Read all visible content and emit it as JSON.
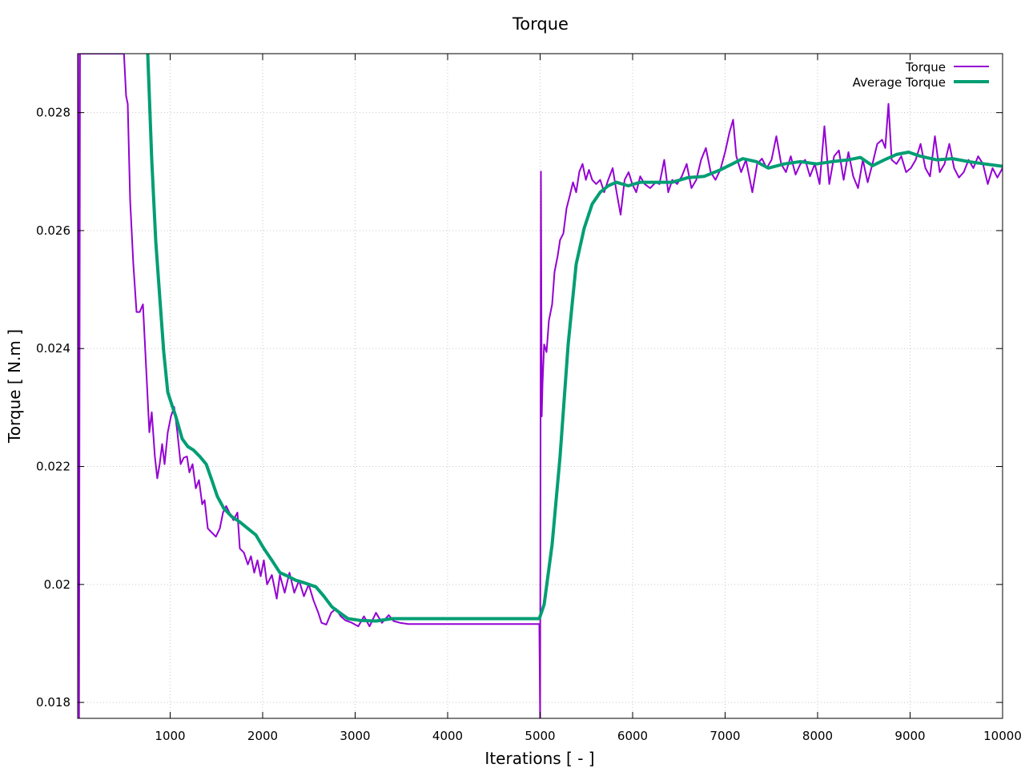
{
  "chart_data": {
    "type": "line",
    "title": "Torque",
    "xlabel": "Iterations [ - ]",
    "ylabel": "Torque [ N.m ]",
    "xlim": [
      0,
      10000
    ],
    "ylim": [
      0.01773,
      0.029
    ],
    "xticks": [
      1000,
      2000,
      3000,
      4000,
      5000,
      6000,
      7000,
      8000,
      9000,
      10000
    ],
    "xtick_labels": [
      "1000",
      "2000",
      "3000",
      "4000",
      "5000",
      "6000",
      "7000",
      "8000",
      "9000",
      "10000"
    ],
    "yticks": [
      0.018,
      0.02,
      0.022,
      0.024,
      0.026,
      0.028
    ],
    "ytick_labels": [
      "0.018",
      "0.02",
      "0.022",
      "0.024",
      "0.026",
      "0.028"
    ],
    "grid": true,
    "legend_position": "top-right",
    "series": [
      {
        "name": "Torque",
        "color": "#9400d3",
        "points": [
          [
            5,
            0.029
          ],
          [
            15,
            0.01773
          ],
          [
            25,
            0.029
          ],
          [
            500,
            0.029
          ],
          [
            524,
            0.02828
          ],
          [
            541,
            0.02815
          ],
          [
            567,
            0.02652
          ],
          [
            602,
            0.02543
          ],
          [
            636,
            0.02462
          ],
          [
            671,
            0.02462
          ],
          [
            706,
            0.02475
          ],
          [
            723,
            0.02421
          ],
          [
            749,
            0.0234
          ],
          [
            775,
            0.02258
          ],
          [
            801,
            0.02292
          ],
          [
            835,
            0.02217
          ],
          [
            861,
            0.0218
          ],
          [
            887,
            0.02204
          ],
          [
            913,
            0.02238
          ],
          [
            939,
            0.02204
          ],
          [
            974,
            0.02258
          ],
          [
            1009,
            0.02285
          ],
          [
            1043,
            0.02301
          ],
          [
            1078,
            0.02258
          ],
          [
            1113,
            0.02204
          ],
          [
            1147,
            0.02215
          ],
          [
            1182,
            0.02217
          ],
          [
            1208,
            0.0219
          ],
          [
            1242,
            0.02204
          ],
          [
            1277,
            0.02163
          ],
          [
            1312,
            0.02177
          ],
          [
            1346,
            0.02136
          ],
          [
            1372,
            0.02143
          ],
          [
            1407,
            0.02095
          ],
          [
            1450,
            0.02088
          ],
          [
            1494,
            0.02081
          ],
          [
            1537,
            0.02095
          ],
          [
            1571,
            0.02122
          ],
          [
            1606,
            0.02133
          ],
          [
            1640,
            0.02122
          ],
          [
            1684,
            0.02109
          ],
          [
            1727,
            0.02122
          ],
          [
            1753,
            0.02061
          ],
          [
            1797,
            0.02054
          ],
          [
            1840,
            0.02034
          ],
          [
            1874,
            0.02048
          ],
          [
            1909,
            0.0202
          ],
          [
            1944,
            0.02041
          ],
          [
            1978,
            0.02014
          ],
          [
            2013,
            0.02041
          ],
          [
            2048,
            0.02
          ],
          [
            2100,
            0.02016
          ],
          [
            2152,
            0.01976
          ],
          [
            2186,
            0.02016
          ],
          [
            2238,
            0.01986
          ],
          [
            2290,
            0.0202
          ],
          [
            2342,
            0.01986
          ],
          [
            2394,
            0.02007
          ],
          [
            2446,
            0.0198
          ],
          [
            2498,
            0.02
          ],
          [
            2550,
            0.01973
          ],
          [
            2602,
            0.01952
          ],
          [
            2636,
            0.01935
          ],
          [
            2688,
            0.01932
          ],
          [
            2740,
            0.01952
          ],
          [
            2792,
            0.01959
          ],
          [
            2844,
            0.01946
          ],
          [
            2896,
            0.01939
          ],
          [
            2965,
            0.01935
          ],
          [
            3034,
            0.01929
          ],
          [
            3095,
            0.01946
          ],
          [
            3156,
            0.01929
          ],
          [
            3225,
            0.01952
          ],
          [
            3290,
            0.01935
          ],
          [
            3364,
            0.01948
          ],
          [
            3416,
            0.01938
          ],
          [
            3485,
            0.01935
          ],
          [
            3571,
            0.01933
          ],
          [
            4991,
            0.01933
          ],
          [
            5000,
            0.01773
          ],
          [
            5009,
            0.027
          ],
          [
            5017,
            0.02285
          ],
          [
            5026,
            0.0234
          ],
          [
            5043,
            0.02407
          ],
          [
            5069,
            0.02394
          ],
          [
            5095,
            0.02448
          ],
          [
            5130,
            0.02475
          ],
          [
            5156,
            0.0253
          ],
          [
            5190,
            0.02557
          ],
          [
            5216,
            0.02584
          ],
          [
            5251,
            0.02595
          ],
          [
            5286,
            0.02638
          ],
          [
            5320,
            0.02659
          ],
          [
            5355,
            0.02682
          ],
          [
            5390,
            0.02665
          ],
          [
            5424,
            0.027
          ],
          [
            5459,
            0.02713
          ],
          [
            5494,
            0.02686
          ],
          [
            5528,
            0.02703
          ],
          [
            5563,
            0.02686
          ],
          [
            5606,
            0.02679
          ],
          [
            5649,
            0.02686
          ],
          [
            5693,
            0.02665
          ],
          [
            5736,
            0.02686
          ],
          [
            5784,
            0.02706
          ],
          [
            5827,
            0.02665
          ],
          [
            5870,
            0.02627
          ],
          [
            5913,
            0.02686
          ],
          [
            5957,
            0.02699
          ],
          [
            5996,
            0.02679
          ],
          [
            6039,
            0.02665
          ],
          [
            6082,
            0.02692
          ],
          [
            6130,
            0.02679
          ],
          [
            6190,
            0.02672
          ],
          [
            6251,
            0.02682
          ],
          [
            6290,
            0.02679
          ],
          [
            6342,
            0.0272
          ],
          [
            6385,
            0.02665
          ],
          [
            6429,
            0.02686
          ],
          [
            6481,
            0.02679
          ],
          [
            6532,
            0.02692
          ],
          [
            6584,
            0.02713
          ],
          [
            6636,
            0.02672
          ],
          [
            6688,
            0.02686
          ],
          [
            6740,
            0.0272
          ],
          [
            6792,
            0.0274
          ],
          [
            6844,
            0.02699
          ],
          [
            6896,
            0.02686
          ],
          [
            6948,
            0.02703
          ],
          [
            7000,
            0.02733
          ],
          [
            7048,
            0.02767
          ],
          [
            7087,
            0.02788
          ],
          [
            7121,
            0.02726
          ],
          [
            7173,
            0.02699
          ],
          [
            7225,
            0.0272
          ],
          [
            7294,
            0.02665
          ],
          [
            7346,
            0.02713
          ],
          [
            7398,
            0.02722
          ],
          [
            7450,
            0.02706
          ],
          [
            7502,
            0.0272
          ],
          [
            7554,
            0.0276
          ],
          [
            7606,
            0.02713
          ],
          [
            7658,
            0.02699
          ],
          [
            7710,
            0.02726
          ],
          [
            7762,
            0.02695
          ],
          [
            7814,
            0.02713
          ],
          [
            7866,
            0.0272
          ],
          [
            7918,
            0.02692
          ],
          [
            7970,
            0.02713
          ],
          [
            8022,
            0.02679
          ],
          [
            8074,
            0.02777
          ],
          [
            8126,
            0.02679
          ],
          [
            8178,
            0.02726
          ],
          [
            8230,
            0.02736
          ],
          [
            8281,
            0.02686
          ],
          [
            8333,
            0.02733
          ],
          [
            8385,
            0.02692
          ],
          [
            8437,
            0.02672
          ],
          [
            8489,
            0.0272
          ],
          [
            8541,
            0.02682
          ],
          [
            8593,
            0.02713
          ],
          [
            8645,
            0.02747
          ],
          [
            8697,
            0.02754
          ],
          [
            8732,
            0.0274
          ],
          [
            8766,
            0.02815
          ],
          [
            8801,
            0.0272
          ],
          [
            8853,
            0.02713
          ],
          [
            8905,
            0.02726
          ],
          [
            8957,
            0.02699
          ],
          [
            9009,
            0.02706
          ],
          [
            9061,
            0.0272
          ],
          [
            9113,
            0.02747
          ],
          [
            9165,
            0.02706
          ],
          [
            9216,
            0.02692
          ],
          [
            9268,
            0.0276
          ],
          [
            9320,
            0.02699
          ],
          [
            9372,
            0.02713
          ],
          [
            9424,
            0.02747
          ],
          [
            9476,
            0.02706
          ],
          [
            9528,
            0.0269
          ],
          [
            9580,
            0.02699
          ],
          [
            9632,
            0.0272
          ],
          [
            9684,
            0.02706
          ],
          [
            9736,
            0.02726
          ],
          [
            9788,
            0.02713
          ],
          [
            9840,
            0.02679
          ],
          [
            9892,
            0.02706
          ],
          [
            9944,
            0.0269
          ],
          [
            10000,
            0.02706
          ]
        ]
      },
      {
        "name": "Average Torque",
        "color": "#009e73",
        "points": [
          [
            758,
            0.029
          ],
          [
            801,
            0.0272
          ],
          [
            844,
            0.02582
          ],
          [
            887,
            0.02489
          ],
          [
            931,
            0.02394
          ],
          [
            974,
            0.02326
          ],
          [
            1017,
            0.02305
          ],
          [
            1061,
            0.02285
          ],
          [
            1130,
            0.02247
          ],
          [
            1190,
            0.02234
          ],
          [
            1251,
            0.02228
          ],
          [
            1320,
            0.02217
          ],
          [
            1390,
            0.02204
          ],
          [
            1450,
            0.02177
          ],
          [
            1511,
            0.02149
          ],
          [
            1580,
            0.02129
          ],
          [
            1667,
            0.02115
          ],
          [
            1753,
            0.02106
          ],
          [
            1840,
            0.02095
          ],
          [
            1926,
            0.02084
          ],
          [
            2013,
            0.02061
          ],
          [
            2100,
            0.02041
          ],
          [
            2186,
            0.0202
          ],
          [
            2273,
            0.02014
          ],
          [
            2359,
            0.02007
          ],
          [
            2446,
            0.02003
          ],
          [
            2576,
            0.01996
          ],
          [
            2662,
            0.0198
          ],
          [
            2749,
            0.01962
          ],
          [
            2835,
            0.01952
          ],
          [
            2922,
            0.01942
          ],
          [
            3052,
            0.01939
          ],
          [
            3225,
            0.01938
          ],
          [
            3398,
            0.01942
          ],
          [
            4991,
            0.01942
          ],
          [
            5043,
            0.01966
          ],
          [
            5130,
            0.02068
          ],
          [
            5216,
            0.02217
          ],
          [
            5303,
            0.02407
          ],
          [
            5390,
            0.02543
          ],
          [
            5476,
            0.02604
          ],
          [
            5563,
            0.02645
          ],
          [
            5649,
            0.02665
          ],
          [
            5736,
            0.02676
          ],
          [
            5823,
            0.02682
          ],
          [
            5953,
            0.02676
          ],
          [
            6082,
            0.02682
          ],
          [
            6255,
            0.02682
          ],
          [
            6429,
            0.02682
          ],
          [
            6602,
            0.0269
          ],
          [
            6775,
            0.02692
          ],
          [
            6948,
            0.02703
          ],
          [
            7078,
            0.02713
          ],
          [
            7190,
            0.02722
          ],
          [
            7337,
            0.02717
          ],
          [
            7467,
            0.02706
          ],
          [
            7640,
            0.02713
          ],
          [
            7814,
            0.02717
          ],
          [
            7987,
            0.02713
          ],
          [
            8160,
            0.02717
          ],
          [
            8333,
            0.0272
          ],
          [
            8463,
            0.02724
          ],
          [
            8593,
            0.0271
          ],
          [
            8723,
            0.0272
          ],
          [
            8853,
            0.02729
          ],
          [
            8983,
            0.02733
          ],
          [
            9113,
            0.02726
          ],
          [
            9286,
            0.0272
          ],
          [
            9459,
            0.02722
          ],
          [
            9632,
            0.02717
          ],
          [
            9805,
            0.02713
          ],
          [
            10000,
            0.02709
          ]
        ]
      }
    ]
  }
}
